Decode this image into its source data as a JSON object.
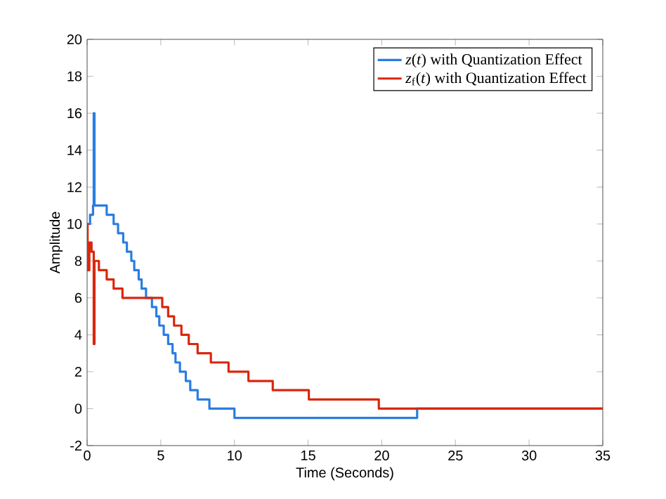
{
  "chart_data": {
    "type": "step",
    "xlabel": "Time (Seconds)",
    "ylabel": "Amplitude",
    "xlim": [
      0,
      35
    ],
    "ylim": [
      -2,
      20
    ],
    "xticks": [
      0,
      5,
      10,
      15,
      20,
      25,
      30,
      35
    ],
    "yticks": [
      -2,
      0,
      2,
      4,
      6,
      8,
      10,
      12,
      14,
      16,
      18,
      20
    ],
    "legend": "top right",
    "grid": false,
    "line_style": "solid",
    "marker": "none",
    "series": [
      {
        "name": "*z*(*t*) with Quantization Effect",
        "color": "#2a7de1",
        "x": [
          0,
          0.2,
          0.4,
          0.45,
          0.5,
          1.33,
          1.8,
          2.1,
          2.45,
          2.7,
          3.0,
          3.2,
          3.5,
          3.7,
          4.0,
          4.4,
          4.7,
          4.9,
          5.2,
          5.5,
          5.8,
          6.0,
          6.3,
          6.7,
          7.0,
          7.5,
          8.3,
          10.0,
          22.4,
          35
        ],
        "values": [
          10,
          10.5,
          11,
          16,
          11,
          10.5,
          10,
          9.5,
          9,
          8.5,
          8,
          7.5,
          7,
          6.5,
          6,
          5.5,
          5,
          4.5,
          4,
          3.5,
          3,
          2.5,
          2,
          1.5,
          1,
          0.5,
          0,
          -0.5,
          0,
          0
        ]
      },
      {
        "name": "*z*$_{f}$(*t*) with Quantization Effect",
        "color": "#d9270f",
        "x": [
          0,
          0.03,
          0.15,
          0.3,
          0.45,
          0.5,
          0.8,
          1.33,
          1.8,
          2.4,
          5.1,
          5.5,
          5.9,
          6.4,
          6.9,
          7.5,
          8.4,
          9.6,
          10.95,
          12.6,
          15.05,
          19.8,
          35
        ],
        "values": [
          10,
          7.5,
          9,
          8.5,
          3.5,
          8,
          7.5,
          7,
          6.5,
          6,
          5.5,
          5,
          4.5,
          4,
          3.5,
          3,
          2.5,
          2,
          1.5,
          1,
          0.5,
          0,
          0
        ]
      }
    ]
  }
}
